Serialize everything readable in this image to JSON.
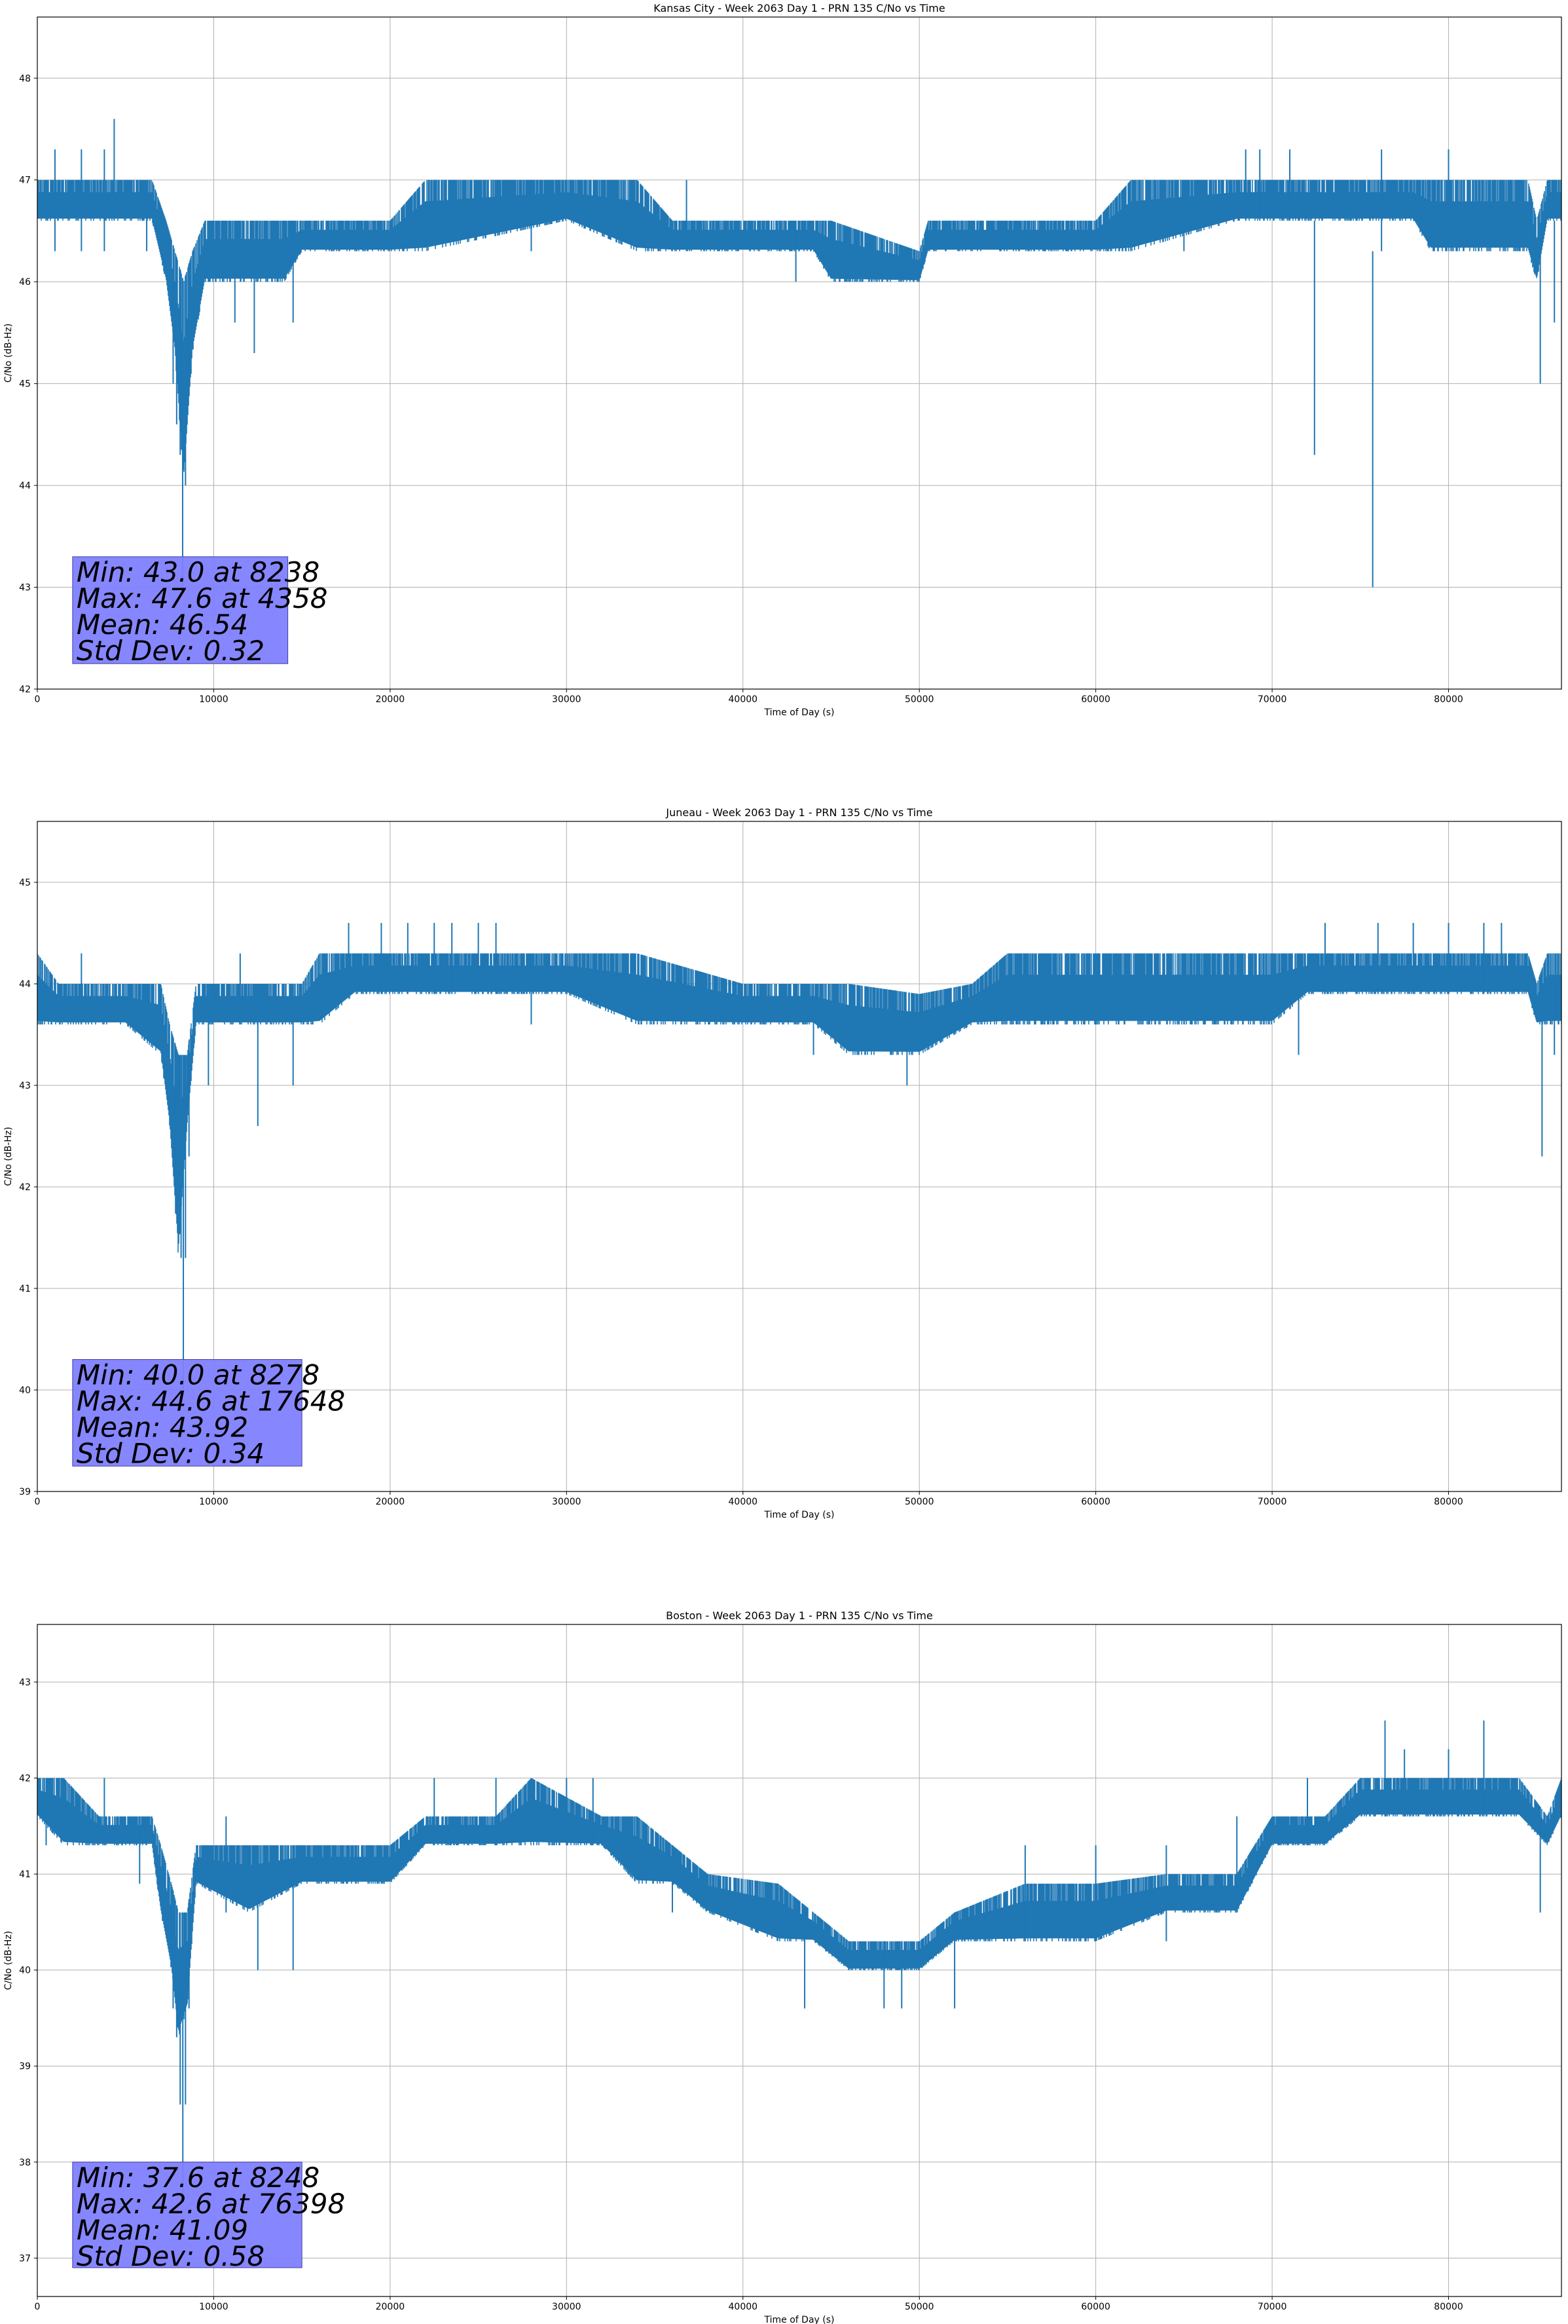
{
  "chart_data": [
    {
      "type": "line",
      "title": "Kansas City - Week 2063 Day 1 - PRN 135 C/No vs Time",
      "xlabel": "Time of Day (s)",
      "ylabel": "C/No (dB-Hz)",
      "xlim": [
        0,
        86400
      ],
      "ylim": [
        42,
        48.6
      ],
      "xticks": [
        0,
        10000,
        20000,
        30000,
        40000,
        50000,
        60000,
        70000,
        80000
      ],
      "yticks": [
        42,
        43,
        44,
        45,
        46,
        47,
        48
      ],
      "grid": true,
      "color": "#1f77b4",
      "band": [
        [
          0,
          46.6,
          47.0
        ],
        [
          3000,
          46.6,
          47.0
        ],
        [
          6500,
          46.6,
          47.0
        ],
        [
          7300,
          46.0,
          46.6
        ],
        [
          7800,
          45.3,
          46.3
        ],
        [
          8300,
          44.0,
          46.0
        ],
        [
          8800,
          45.3,
          46.3
        ],
        [
          9500,
          46.0,
          46.6
        ],
        [
          12000,
          46.0,
          46.6
        ],
        [
          14000,
          46.0,
          46.6
        ],
        [
          15000,
          46.3,
          46.6
        ],
        [
          20000,
          46.3,
          46.6
        ],
        [
          22000,
          46.3,
          47.0
        ],
        [
          30000,
          46.6,
          47.0
        ],
        [
          34000,
          46.3,
          47.0
        ],
        [
          36000,
          46.3,
          46.6
        ],
        [
          44000,
          46.3,
          46.6
        ],
        [
          45000,
          46.0,
          46.6
        ],
        [
          50000,
          46.0,
          46.3
        ],
        [
          50500,
          46.3,
          46.6
        ],
        [
          55000,
          46.3,
          46.6
        ],
        [
          60000,
          46.3,
          46.6
        ],
        [
          62000,
          46.3,
          47.0
        ],
        [
          68000,
          46.6,
          47.0
        ],
        [
          78000,
          46.6,
          47.0
        ],
        [
          79000,
          46.3,
          47.0
        ],
        [
          84500,
          46.3,
          47.0
        ],
        [
          85000,
          46.0,
          46.6
        ],
        [
          85600,
          46.6,
          47.0
        ],
        [
          86400,
          46.6,
          47.0
        ]
      ],
      "spikes": [
        [
          1000,
          46.3,
          47.3
        ],
        [
          2500,
          46.3,
          47.3
        ],
        [
          3800,
          46.3,
          47.3
        ],
        [
          4358,
          46.6,
          47.6
        ],
        [
          6200,
          46.3,
          47.0
        ],
        [
          10500,
          46.0,
          46.6
        ],
        [
          11200,
          45.6,
          46.3
        ],
        [
          12300,
          45.3,
          46.3
        ],
        [
          14500,
          45.6,
          46.6
        ],
        [
          28000,
          46.3,
          47.0
        ],
        [
          36800,
          46.3,
          47.0
        ],
        [
          43000,
          46.0,
          46.6
        ],
        [
          49000,
          46.0,
          46.3
        ],
        [
          65000,
          46.3,
          47.0
        ],
        [
          68500,
          46.6,
          47.3
        ],
        [
          69300,
          46.6,
          47.3
        ],
        [
          71000,
          46.6,
          47.3
        ],
        [
          72400,
          44.3,
          46.6
        ],
        [
          75700,
          43.0,
          46.3
        ],
        [
          76200,
          46.3,
          47.3
        ],
        [
          80000,
          46.6,
          47.3
        ],
        [
          85200,
          45.0,
          46.3
        ],
        [
          86000,
          45.6,
          46.6
        ]
      ],
      "dip": [
        7700,
        7900,
        8100,
        8238,
        8400,
        8600
      ],
      "dip_lows": [
        45.0,
        44.6,
        44.3,
        43.0,
        44.0,
        45.0
      ],
      "stats": {
        "min": "Min: 43.0 at 8238",
        "max": "Max: 47.6 at 4358",
        "mean": "Mean: 46.54",
        "std": "Std Dev: 0.32"
      },
      "stats_loc": [
        2000,
        42.25,
        14200,
        43.3
      ]
    },
    {
      "type": "line",
      "title": "Juneau - Week 2063 Day 1 - PRN 135 C/No vs Time",
      "xlabel": "Time of Day (s)",
      "ylabel": "C/No (dB-Hz)",
      "xlim": [
        0,
        86400
      ],
      "ylim": [
        39,
        45.6
      ],
      "xticks": [
        0,
        10000,
        20000,
        30000,
        40000,
        50000,
        60000,
        70000,
        80000
      ],
      "yticks": [
        39,
        40,
        41,
        42,
        43,
        44,
        45
      ],
      "grid": true,
      "color": "#1f77b4",
      "band": [
        [
          0,
          43.6,
          44.3
        ],
        [
          1200,
          43.6,
          44.0
        ],
        [
          5000,
          43.6,
          44.0
        ],
        [
          7000,
          43.3,
          44.0
        ],
        [
          7500,
          42.6,
          43.6
        ],
        [
          8000,
          41.3,
          43.3
        ],
        [
          8500,
          42.6,
          43.3
        ],
        [
          9000,
          43.6,
          44.0
        ],
        [
          12000,
          43.6,
          44.0
        ],
        [
          15000,
          43.6,
          44.0
        ],
        [
          16000,
          43.6,
          44.3
        ],
        [
          18000,
          43.9,
          44.3
        ],
        [
          22000,
          43.9,
          44.3
        ],
        [
          28000,
          43.9,
          44.3
        ],
        [
          30000,
          43.9,
          44.3
        ],
        [
          34000,
          43.6,
          44.3
        ],
        [
          40000,
          43.6,
          44.0
        ],
        [
          44000,
          43.6,
          44.0
        ],
        [
          46000,
          43.3,
          44.0
        ],
        [
          50000,
          43.3,
          43.9
        ],
        [
          53000,
          43.6,
          44.0
        ],
        [
          55000,
          43.6,
          44.3
        ],
        [
          60000,
          43.6,
          44.3
        ],
        [
          65000,
          43.6,
          44.3
        ],
        [
          70000,
          43.6,
          44.3
        ],
        [
          72000,
          43.9,
          44.3
        ],
        [
          77000,
          43.9,
          44.3
        ],
        [
          84500,
          43.9,
          44.3
        ],
        [
          85000,
          43.6,
          44.0
        ],
        [
          85600,
          43.6,
          44.3
        ],
        [
          86400,
          43.6,
          44.3
        ]
      ],
      "spikes": [
        [
          2500,
          43.6,
          44.3
        ],
        [
          9700,
          43.0,
          44.0
        ],
        [
          11500,
          43.6,
          44.3
        ],
        [
          12500,
          42.6,
          43.9
        ],
        [
          14500,
          43.0,
          44.0
        ],
        [
          17648,
          43.9,
          44.6
        ],
        [
          19500,
          43.9,
          44.6
        ],
        [
          21000,
          43.9,
          44.6
        ],
        [
          22500,
          43.9,
          44.6
        ],
        [
          23500,
          43.9,
          44.6
        ],
        [
          25000,
          43.9,
          44.6
        ],
        [
          26000,
          43.9,
          44.6
        ],
        [
          28000,
          43.6,
          44.3
        ],
        [
          44000,
          43.3,
          44.0
        ],
        [
          49300,
          43.0,
          43.6
        ],
        [
          65000,
          43.6,
          44.3
        ],
        [
          71500,
          43.3,
          44.0
        ],
        [
          73000,
          43.9,
          44.6
        ],
        [
          76000,
          43.9,
          44.6
        ],
        [
          78000,
          43.9,
          44.6
        ],
        [
          80000,
          43.9,
          44.6
        ],
        [
          82000,
          43.9,
          44.6
        ],
        [
          83000,
          43.9,
          44.6
        ],
        [
          85300,
          42.3,
          43.6
        ],
        [
          86000,
          43.3,
          44.0
        ]
      ],
      "dip": [
        7800,
        8000,
        8150,
        8278,
        8400,
        8600
      ],
      "dip_lows": [
        42.3,
        42.0,
        41.3,
        40.0,
        41.3,
        42.3
      ],
      "stats": {
        "min": "Min: 40.0 at 8278",
        "max": "Max: 44.6 at 17648",
        "mean": "Mean: 43.92",
        "std": "Std Dev: 0.34"
      },
      "stats_loc": [
        2000,
        39.25,
        15000,
        40.3
      ]
    },
    {
      "type": "line",
      "title": "Boston - Week 2063 Day 1 - PRN 135 C/No vs Time",
      "xlabel": "Time of Day (s)",
      "ylabel": "C/No (dB-Hz)",
      "xlim": [
        0,
        86400
      ],
      "ylim": [
        36.6,
        43.6
      ],
      "xticks": [
        0,
        10000,
        20000,
        30000,
        40000,
        50000,
        60000,
        70000,
        80000
      ],
      "yticks": [
        37,
        38,
        39,
        40,
        41,
        42,
        43
      ],
      "grid": true,
      "color": "#1f77b4",
      "band": [
        [
          0,
          41.6,
          42.0
        ],
        [
          1500,
          41.3,
          42.0
        ],
        [
          3500,
          41.3,
          41.6
        ],
        [
          6500,
          41.3,
          41.6
        ],
        [
          7000,
          40.6,
          41.3
        ],
        [
          7600,
          40.0,
          40.9
        ],
        [
          8000,
          39.3,
          40.6
        ],
        [
          8500,
          39.6,
          40.6
        ],
        [
          9000,
          40.9,
          41.3
        ],
        [
          12000,
          40.6,
          41.3
        ],
        [
          15000,
          40.9,
          41.3
        ],
        [
          20000,
          40.9,
          41.3
        ],
        [
          22000,
          41.3,
          41.6
        ],
        [
          26000,
          41.3,
          41.6
        ],
        [
          28000,
          41.3,
          42.0
        ],
        [
          32000,
          41.3,
          41.6
        ],
        [
          34000,
          40.9,
          41.6
        ],
        [
          36000,
          40.9,
          41.3
        ],
        [
          38000,
          40.6,
          41.0
        ],
        [
          42000,
          40.3,
          40.9
        ],
        [
          44000,
          40.3,
          40.6
        ],
        [
          46000,
          40.0,
          40.3
        ],
        [
          50000,
          40.0,
          40.3
        ],
        [
          52000,
          40.3,
          40.6
        ],
        [
          56000,
          40.3,
          40.9
        ],
        [
          60000,
          40.3,
          40.9
        ],
        [
          64000,
          40.6,
          41.0
        ],
        [
          68000,
          40.6,
          41.0
        ],
        [
          70000,
          41.3,
          41.6
        ],
        [
          73000,
          41.3,
          41.6
        ],
        [
          75000,
          41.6,
          42.0
        ],
        [
          80000,
          41.6,
          42.0
        ],
        [
          84000,
          41.6,
          42.0
        ],
        [
          85600,
          41.3,
          41.6
        ],
        [
          86400,
          41.6,
          42.0
        ]
      ],
      "spikes": [
        [
          500,
          41.3,
          42.0
        ],
        [
          3800,
          41.3,
          42.0
        ],
        [
          5800,
          40.9,
          41.6
        ],
        [
          10700,
          40.6,
          41.6
        ],
        [
          12500,
          40.0,
          41.3
        ],
        [
          14500,
          40.0,
          41.3
        ],
        [
          16500,
          40.9,
          41.3
        ],
        [
          19500,
          40.9,
          41.3
        ],
        [
          22500,
          41.3,
          42.0
        ],
        [
          26000,
          41.3,
          42.0
        ],
        [
          30000,
          41.3,
          42.0
        ],
        [
          31500,
          41.3,
          42.0
        ],
        [
          36000,
          40.6,
          41.3
        ],
        [
          43500,
          39.6,
          40.6
        ],
        [
          48000,
          39.6,
          40.3
        ],
        [
          49000,
          39.6,
          40.3
        ],
        [
          52000,
          39.6,
          40.6
        ],
        [
          56000,
          40.3,
          41.3
        ],
        [
          60000,
          40.3,
          41.3
        ],
        [
          64000,
          40.3,
          41.3
        ],
        [
          68000,
          40.6,
          41.6
        ],
        [
          72000,
          41.3,
          42.0
        ],
        [
          76398,
          41.6,
          42.6
        ],
        [
          77500,
          41.6,
          42.3
        ],
        [
          80000,
          41.6,
          42.3
        ],
        [
          82000,
          41.6,
          42.6
        ],
        [
          85200,
          40.6,
          41.6
        ]
      ],
      "dip": [
        7700,
        7900,
        8100,
        8248,
        8400,
        8600
      ],
      "dip_lows": [
        39.6,
        39.3,
        38.6,
        37.6,
        38.6,
        39.6
      ],
      "stats": {
        "min": "Min: 37.6 at 8248",
        "max": "Max: 42.6 at 76398",
        "mean": "Mean: 41.09",
        "std": "Std Dev: 0.58"
      },
      "stats_loc": [
        2000,
        36.9,
        15000,
        38.0
      ]
    }
  ]
}
